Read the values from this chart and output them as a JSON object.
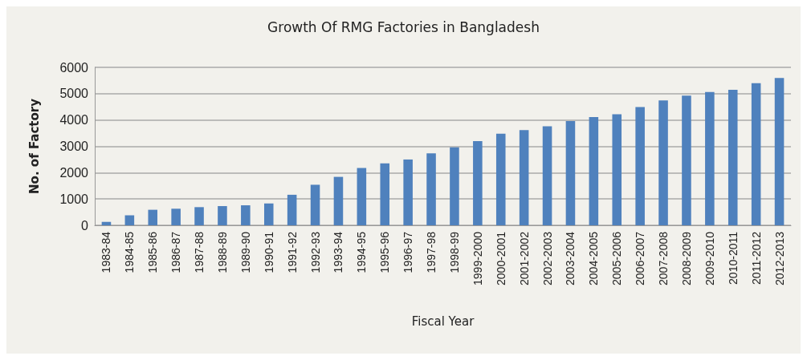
{
  "chart_data": {
    "type": "bar",
    "title": "Growth Of RMG Factories in Bangladesh",
    "xlabel": "Fiscal Year",
    "ylabel": "No. of Factory",
    "categories": [
      "1983-84",
      "1984-85",
      "1985-86",
      "1986-87",
      "1987-88",
      "1988-89",
      "1989-90",
      "1990-91",
      "1991-92",
      "1992-93",
      "1993-94",
      "1994-95",
      "1995-96",
      "1996-97",
      "1997-98",
      "1998-99",
      "1999-2000",
      "2000-2001",
      "2001-2002",
      "2002-2003",
      "2003-2004",
      "2004-2005",
      "2005-2006",
      "2006-2007",
      "2007-2008",
      "2008-2009",
      "2009-2010",
      "2010-2011",
      "2011-2012",
      "2012-2013"
    ],
    "values": [
      130,
      380,
      590,
      630,
      690,
      730,
      760,
      830,
      1160,
      1540,
      1840,
      2180,
      2350,
      2500,
      2730,
      2960,
      3200,
      3480,
      3620,
      3760,
      3960,
      4110,
      4220,
      4490,
      4740,
      4930,
      5060,
      5150,
      5400,
      5600
    ],
    "color": "#4f81bd",
    "ylim": [
      0,
      6000
    ],
    "yticks": [
      0,
      1000,
      2000,
      3000,
      4000,
      5000,
      6000
    ],
    "grid": "y"
  }
}
